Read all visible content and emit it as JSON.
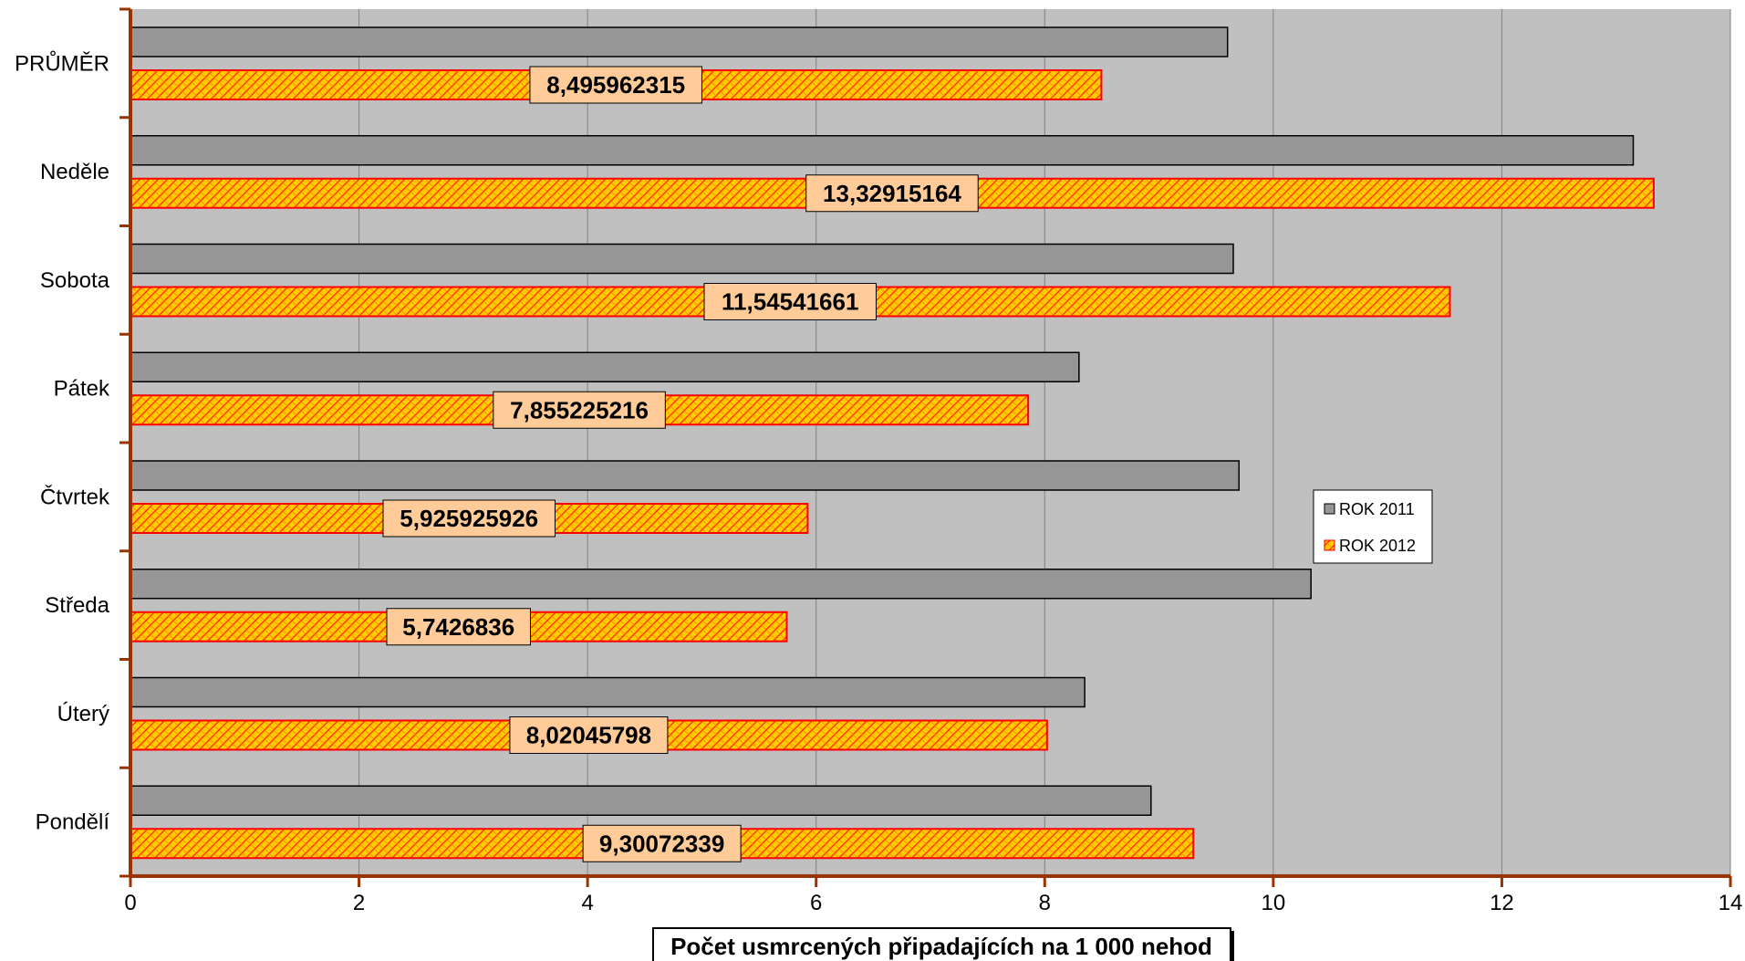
{
  "chart_data": {
    "type": "bar",
    "orientation": "horizontal",
    "categories": [
      "PRŮMĚR",
      "Neděle",
      "Sobota",
      "Pátek",
      "Čtvrtek",
      "Středa",
      "Úterý",
      "Pondělí"
    ],
    "series": [
      {
        "name": "ROK 2011",
        "values": [
          9.6,
          13.15,
          9.65,
          8.3,
          9.7,
          10.33,
          8.35,
          8.93
        ],
        "color": "#969696"
      },
      {
        "name": "ROK 2012",
        "values": [
          8.495962315,
          13.32915164,
          11.54541661,
          7.855225216,
          5.925925926,
          5.7426836,
          8.02045798,
          9.30072339
        ],
        "labels": [
          "8,495962315",
          "13,32915164",
          "11,54541661",
          "7,855225216",
          "5,925925926",
          "5,7426836",
          "8,02045798",
          "9,30072339"
        ],
        "color": "#ffcc00",
        "edge_color": "#ff0000"
      }
    ],
    "x_ticks": [
      "0",
      "2",
      "4",
      "6",
      "8",
      "10",
      "12",
      "14"
    ],
    "xlim": [
      0,
      14
    ],
    "xlabel": "Počet usmrcených připadajících na 1 000 nehod",
    "title": "",
    "grid": "vertical",
    "plot_background": "#c0c0c0",
    "axis_color": "#993300",
    "data_label_background": "#ffcc99",
    "legend_position": "right"
  }
}
